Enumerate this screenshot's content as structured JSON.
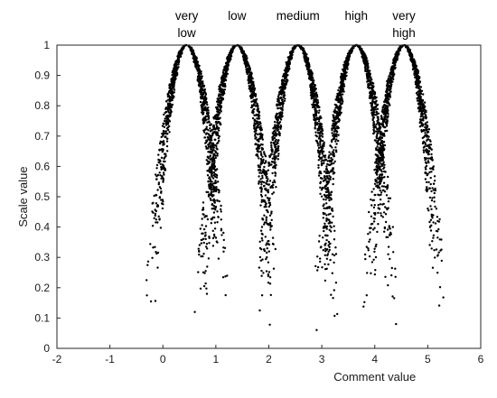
{
  "chart_data": {
    "type": "scatter",
    "title": "",
    "xlabel": "Comment value",
    "ylabel": "Scale value",
    "xlim": [
      -2,
      6
    ],
    "ylim": [
      0,
      1
    ],
    "xticks": [
      -2,
      -1,
      0,
      1,
      2,
      3,
      4,
      5,
      6
    ],
    "yticks": [
      0,
      0.1,
      0.2,
      0.3,
      0.4,
      0.5,
      0.6,
      0.7,
      0.8,
      0.9,
      1
    ],
    "grid": false,
    "marker_color": "#000000",
    "categories": [
      {
        "lines": [
          "very",
          "low"
        ],
        "peak_x": 0.45,
        "tail_min": -1.0,
        "tail_max": 2.0
      },
      {
        "lines": [
          "low"
        ],
        "peak_x": 1.4,
        "tail_min": 0.0,
        "tail_max": 3.0
      },
      {
        "lines": [
          "medium"
        ],
        "peak_x": 2.55,
        "tail_min": 1.0,
        "tail_max": 4.0
      },
      {
        "lines": [
          "high"
        ],
        "peak_x": 3.65,
        "tail_min": 2.0,
        "tail_max": 5.0
      },
      {
        "lines": [
          "very",
          "high"
        ],
        "peak_x": 4.55,
        "tail_min": 3.0,
        "tail_max": 6.0
      }
    ],
    "series": [
      {
        "peak_x": 0.45,
        "peak_y": 1.0,
        "points_per_series": 1000,
        "spread_left": 0.75,
        "spread_right": 0.75
      },
      {
        "peak_x": 1.4,
        "peak_y": 1.0,
        "points_per_series": 1000,
        "spread_left": 0.75,
        "spread_right": 0.75
      },
      {
        "peak_x": 2.55,
        "peak_y": 1.0,
        "points_per_series": 1000,
        "spread_left": 0.75,
        "spread_right": 0.75
      },
      {
        "peak_x": 3.65,
        "peak_y": 1.0,
        "points_per_series": 1000,
        "spread_left": 0.75,
        "spread_right": 0.75
      },
      {
        "peak_x": 4.55,
        "peak_y": 1.0,
        "points_per_series": 1000,
        "spread_left": 0.75,
        "spread_right": 0.75
      }
    ]
  }
}
